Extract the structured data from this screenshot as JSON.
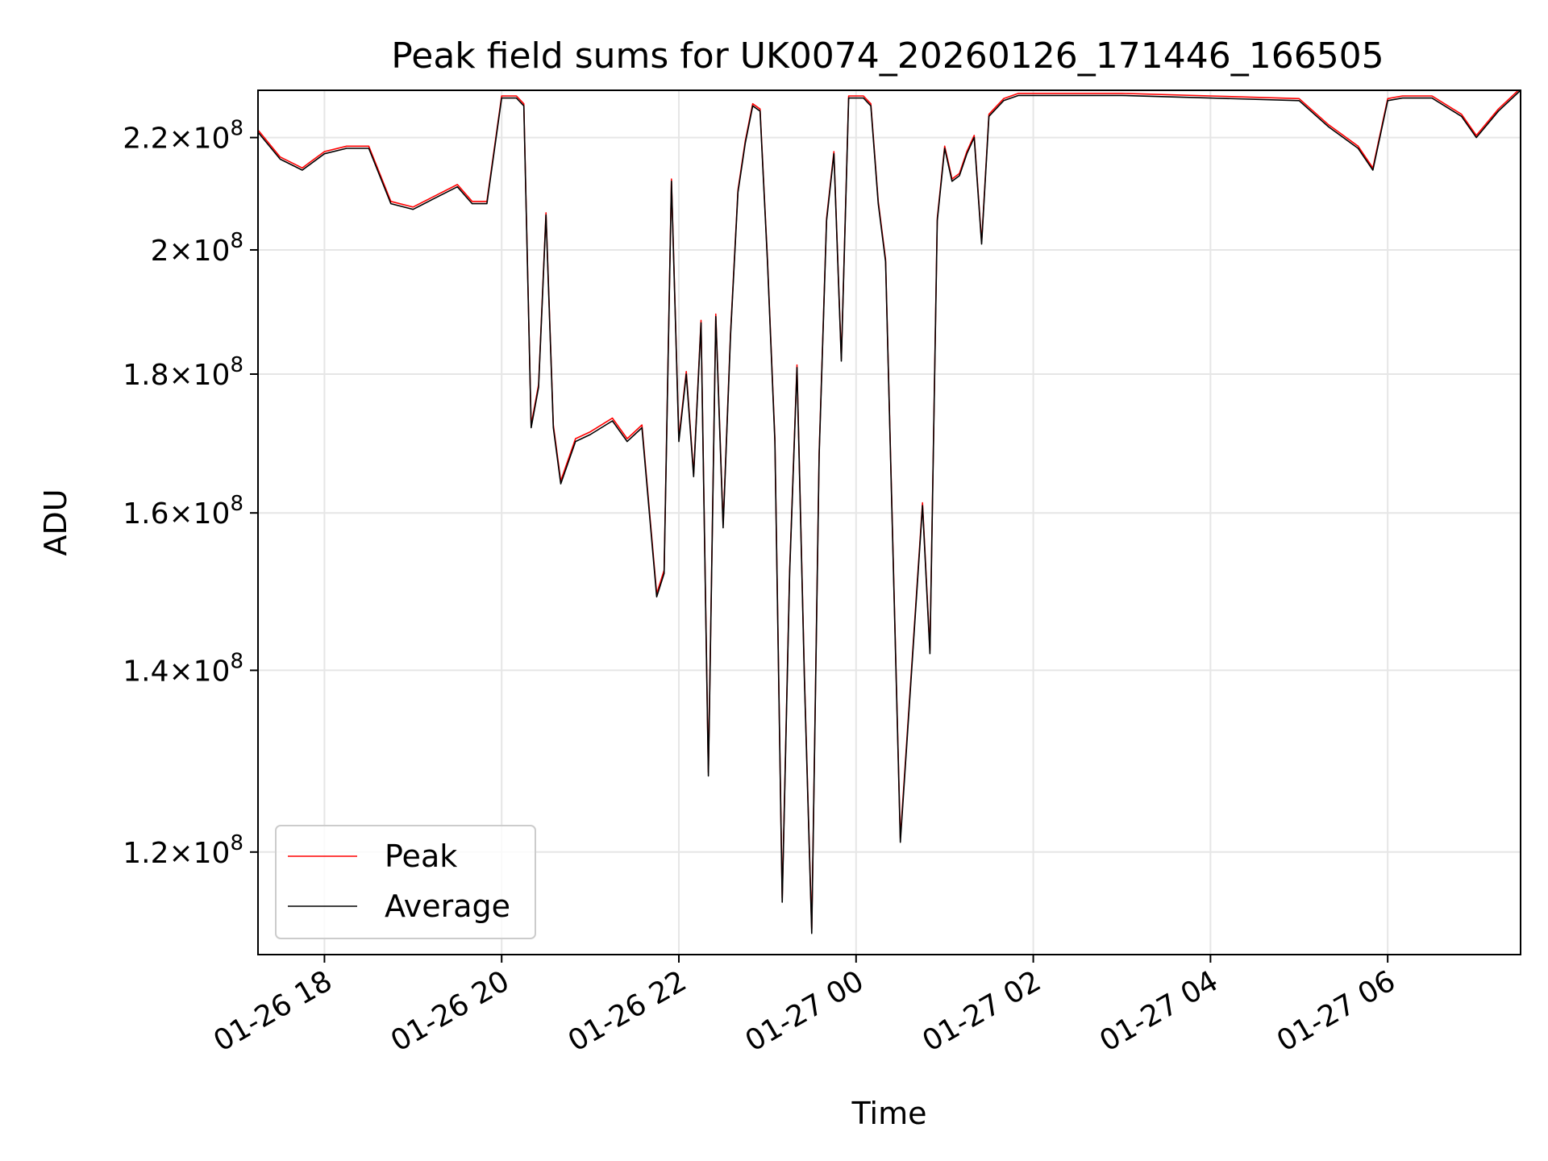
{
  "chart_data": {
    "type": "line",
    "title": "Peak field sums for UK0074_20260126_171446_166505",
    "xlabel": "Time",
    "ylabel": "ADU",
    "y_scale": "log",
    "grid": true,
    "legend_position": "lower left",
    "xlim": [
      "2026-01-26 17:15",
      "2026-01-27 07:30"
    ],
    "ylim": [
      110000000,
      229000000
    ],
    "x_ticks": [
      {
        "x": "2026-01-26 18:00",
        "label": "01-26 18"
      },
      {
        "x": "2026-01-26 20:00",
        "label": "01-26 20"
      },
      {
        "x": "2026-01-26 22:00",
        "label": "01-26 22"
      },
      {
        "x": "2026-01-27 00:00",
        "label": "01-27 00"
      },
      {
        "x": "2026-01-27 02:00",
        "label": "01-27 02"
      },
      {
        "x": "2026-01-27 04:00",
        "label": "01-27 04"
      },
      {
        "x": "2026-01-27 06:00",
        "label": "01-27 06"
      }
    ],
    "y_ticks": [
      {
        "y": 120000000,
        "mantissa": "1.2",
        "exponent": "8"
      },
      {
        "y": 140000000,
        "mantissa": "1.4",
        "exponent": "8"
      },
      {
        "y": 160000000,
        "mantissa": "1.6",
        "exponent": "8"
      },
      {
        "y": 180000000,
        "mantissa": "1.8",
        "exponent": "8"
      },
      {
        "y": 200000000,
        "mantissa": "2",
        "exponent": "8"
      },
      {
        "y": 220000000,
        "mantissa": "2.2",
        "exponent": "8"
      }
    ],
    "series": [
      {
        "name": "Peak",
        "color": "#ff0000",
        "offset": 400000
      },
      {
        "name": "Average",
        "color": "#000000",
        "offset": 0
      }
    ],
    "x": [
      "2026-01-26 17:15",
      "2026-01-26 17:30",
      "2026-01-26 17:45",
      "2026-01-26 18:00",
      "2026-01-26 18:15",
      "2026-01-26 18:30",
      "2026-01-26 18:45",
      "2026-01-26 19:00",
      "2026-01-26 19:15",
      "2026-01-26 19:30",
      "2026-01-26 19:40",
      "2026-01-26 19:50",
      "2026-01-26 20:00",
      "2026-01-26 20:10",
      "2026-01-26 20:15",
      "2026-01-26 20:20",
      "2026-01-26 20:25",
      "2026-01-26 20:30",
      "2026-01-26 20:35",
      "2026-01-26 20:40",
      "2026-01-26 20:50",
      "2026-01-26 21:00",
      "2026-01-26 21:15",
      "2026-01-26 21:25",
      "2026-01-26 21:30",
      "2026-01-26 21:35",
      "2026-01-26 21:40",
      "2026-01-26 21:45",
      "2026-01-26 21:50",
      "2026-01-26 21:55",
      "2026-01-26 22:00",
      "2026-01-26 22:05",
      "2026-01-26 22:10",
      "2026-01-26 22:15",
      "2026-01-26 22:20",
      "2026-01-26 22:25",
      "2026-01-26 22:30",
      "2026-01-26 22:35",
      "2026-01-26 22:40",
      "2026-01-26 22:45",
      "2026-01-26 22:50",
      "2026-01-26 22:55",
      "2026-01-26 23:00",
      "2026-01-26 23:05",
      "2026-01-26 23:10",
      "2026-01-26 23:15",
      "2026-01-26 23:20",
      "2026-01-26 23:25",
      "2026-01-26 23:30",
      "2026-01-26 23:35",
      "2026-01-26 23:40",
      "2026-01-26 23:45",
      "2026-01-26 23:50",
      "2026-01-26 23:55",
      "2026-01-27 00:00",
      "2026-01-27 00:05",
      "2026-01-27 00:10",
      "2026-01-27 00:15",
      "2026-01-27 00:20",
      "2026-01-27 00:30",
      "2026-01-27 00:45",
      "2026-01-27 00:50",
      "2026-01-27 00:55",
      "2026-01-27 01:00",
      "2026-01-27 01:05",
      "2026-01-27 01:10",
      "2026-01-27 01:15",
      "2026-01-27 01:20",
      "2026-01-27 01:25",
      "2026-01-27 01:30",
      "2026-01-27 01:40",
      "2026-01-27 01:50",
      "2026-01-27 01:55",
      "2026-01-27 02:00",
      "2026-01-27 02:15",
      "2026-01-27 03:00",
      "2026-01-27 04:00",
      "2026-01-27 05:00",
      "2026-01-27 05:20",
      "2026-01-27 05:40",
      "2026-01-27 05:50",
      "2026-01-27 06:00",
      "2026-01-27 06:10",
      "2026-01-27 06:30",
      "2026-01-27 06:50",
      "2026-01-27 07:00",
      "2026-01-27 07:15",
      "2026-01-27 07:30"
    ],
    "values": [
      221000000,
      216000000,
      214000000,
      217000000,
      218000000,
      218000000,
      208000000,
      207000000,
      209000000,
      211000000,
      208000000,
      208000000,
      227500000,
      227500000,
      226000000,
      172000000,
      178000000,
      206000000,
      172000000,
      164000000,
      170000000,
      171000000,
      173000000,
      170000000,
      171000000,
      172000000,
      160000000,
      149000000,
      152000000,
      212000000,
      170000000,
      180000000,
      165000000,
      188000000,
      128000000,
      189000000,
      158000000,
      186000000,
      210000000,
      219000000,
      226000000,
      225000000,
      198000000,
      170000000,
      115000000,
      152000000,
      181000000,
      139000000,
      112000000,
      168000000,
      205000000,
      217000000,
      182000000,
      227500000,
      227500000,
      227500000,
      226000000,
      208000000,
      198000000,
      121000000,
      161000000,
      142000000,
      205000000,
      218000000,
      212000000,
      213000000,
      217000000,
      220000000,
      201000000,
      224000000,
      227000000,
      228000000,
      228000000,
      228000000,
      228000000,
      228000000,
      227500000,
      227000000,
      222000000,
      218000000,
      214000000,
      227000000,
      227500000,
      227500000,
      224000000,
      220000000,
      225000000,
      229000000
    ]
  }
}
